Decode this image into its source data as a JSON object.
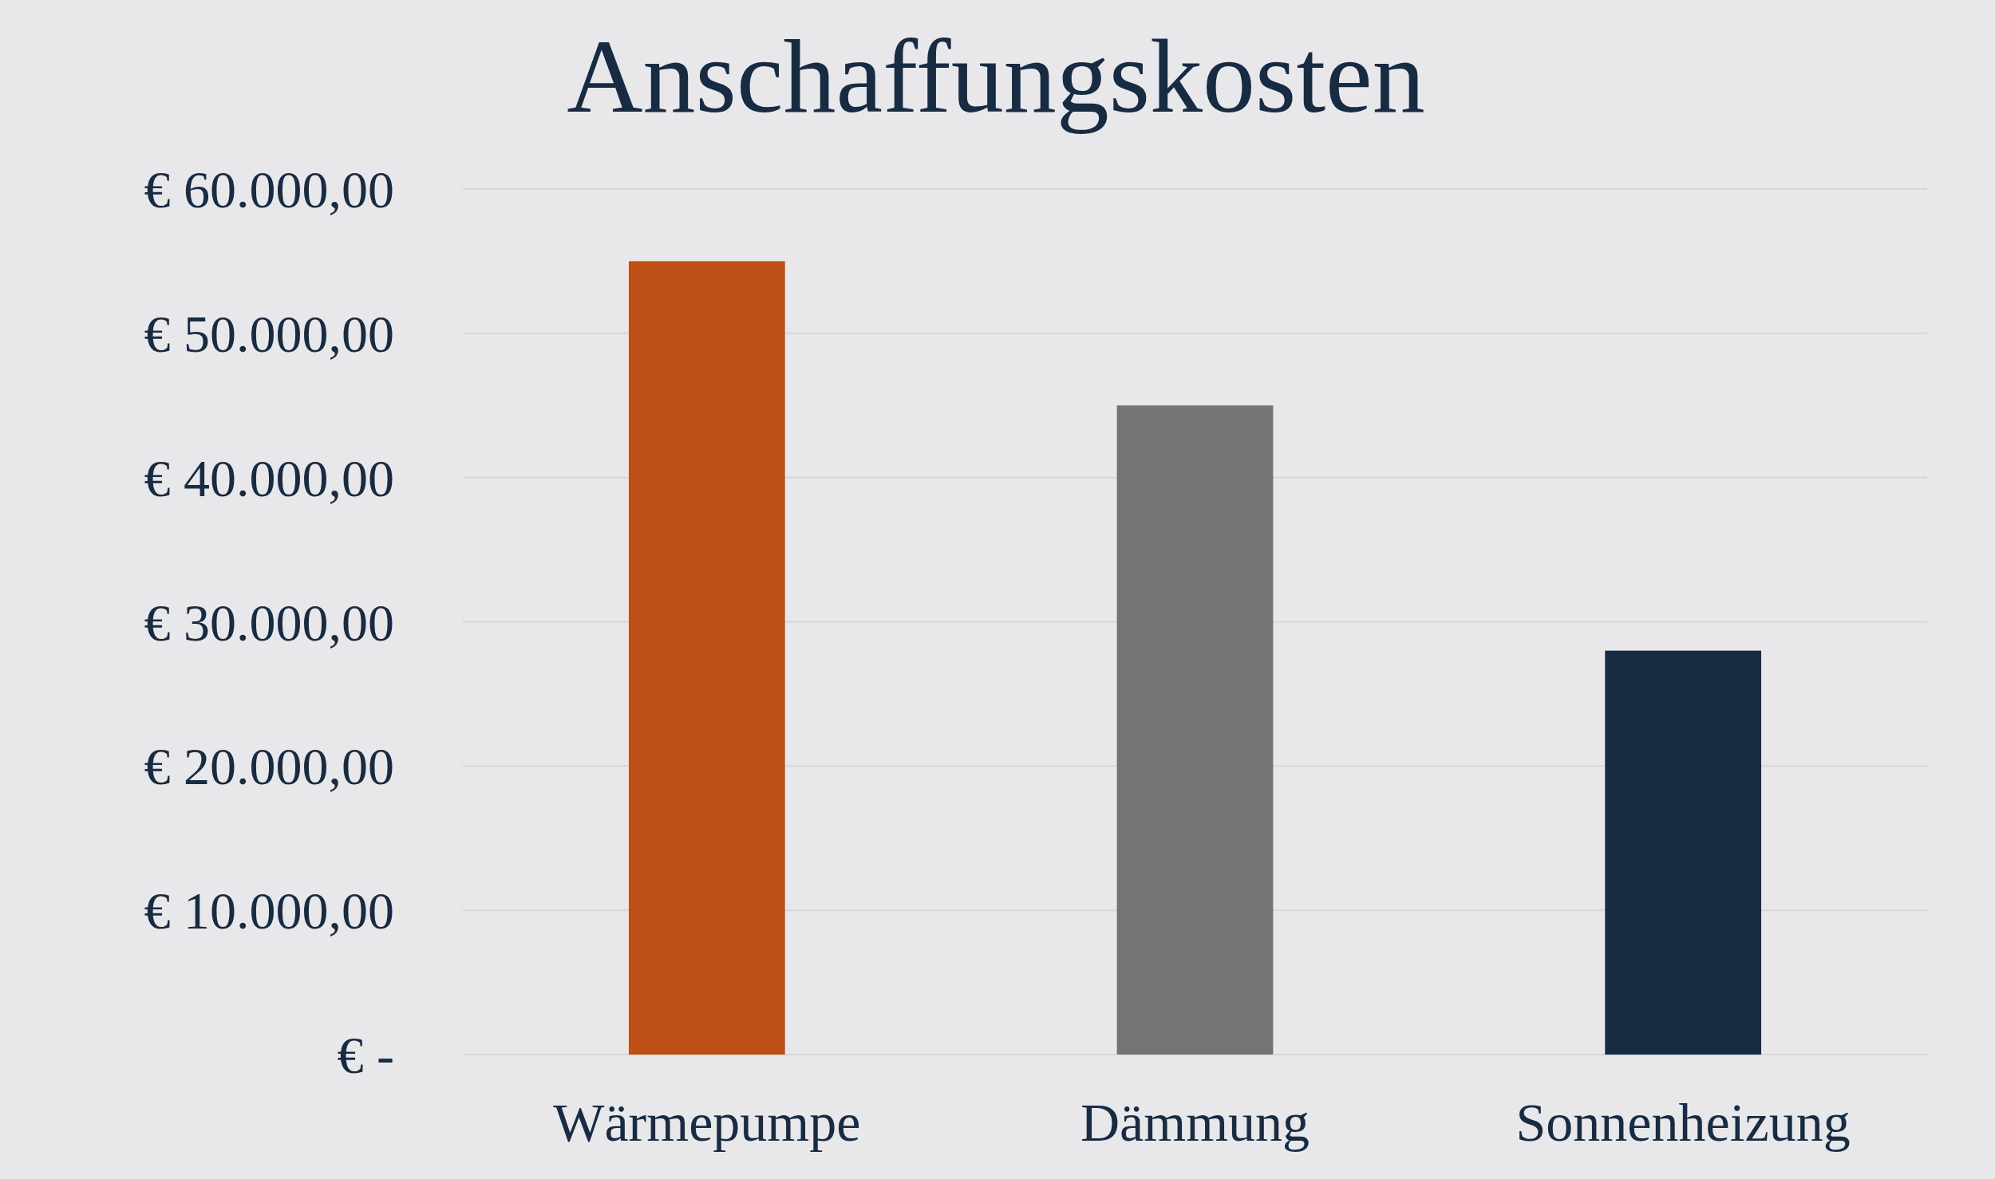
{
  "chart_data": {
    "type": "bar",
    "title": "Anschaffungskosten",
    "categories": [
      "Wärmepumpe",
      "Dämmung",
      "Sonnenheizung"
    ],
    "values": [
      55000,
      45000,
      28000
    ],
    "colors": [
      "#be4f15",
      "#747474",
      "#172b43"
    ],
    "ylim": [
      0,
      60000
    ],
    "yticks": [
      {
        "value": 0,
        "label": "€ -"
      },
      {
        "value": 10000,
        "label": "€ 10.000,00"
      },
      {
        "value": 20000,
        "label": "€ 20.000,00"
      },
      {
        "value": 30000,
        "label": "€ 30.000,00"
      },
      {
        "value": 40000,
        "label": "€ 40.000,00"
      },
      {
        "value": 50000,
        "label": "€ 50.000,00"
      },
      {
        "value": 60000,
        "label": "€ 60.000,00"
      }
    ],
    "grid": "y"
  }
}
